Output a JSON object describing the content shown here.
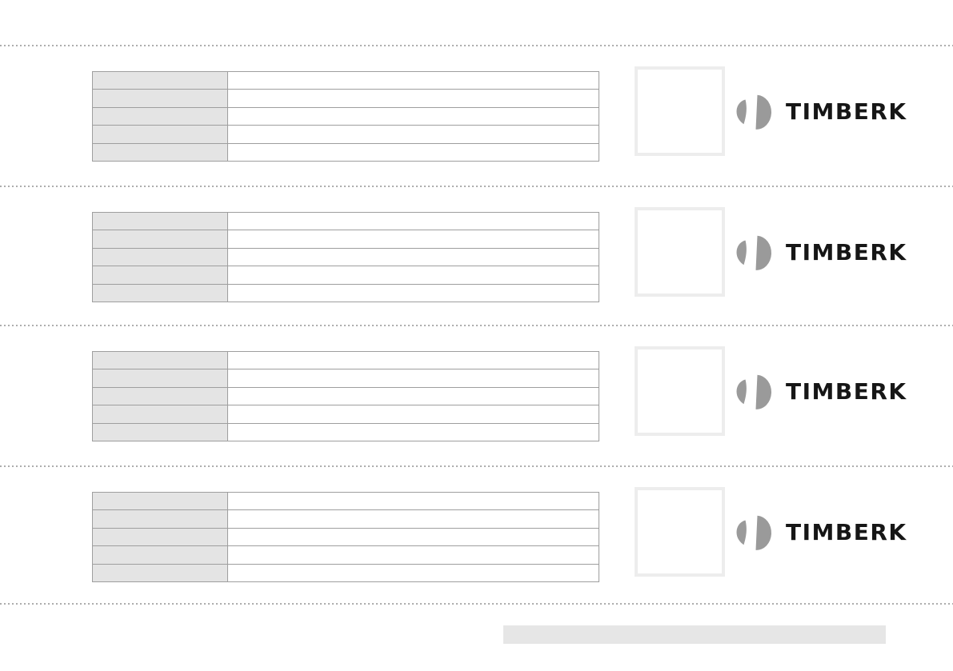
{
  "document": {
    "type": "warranty-card-sheet",
    "background": "#ffffff",
    "sections_count": 4
  },
  "brand": {
    "name": "TIMBERK",
    "wordmark_color": "#161616",
    "icon": "timberk-split-disc-mark",
    "icon_color": "#9a9a9a"
  },
  "table": {
    "row_count": 5,
    "column_count": 2,
    "rows": [
      [
        "",
        ""
      ],
      [
        "",
        ""
      ],
      [
        "",
        ""
      ],
      [
        "",
        ""
      ],
      [
        "",
        ""
      ]
    ],
    "label_cell_fill": "#e4e4e4",
    "value_cell_fill": "#ffffff",
    "border_color": "#9e9e9e"
  },
  "stamp_box": {
    "content": "",
    "border_color": "#ededed"
  },
  "separator": {
    "style": "dotted",
    "color": "#adadad",
    "count": 5
  },
  "footer_bar": {
    "text": "",
    "fill": "#e6e6e6"
  }
}
